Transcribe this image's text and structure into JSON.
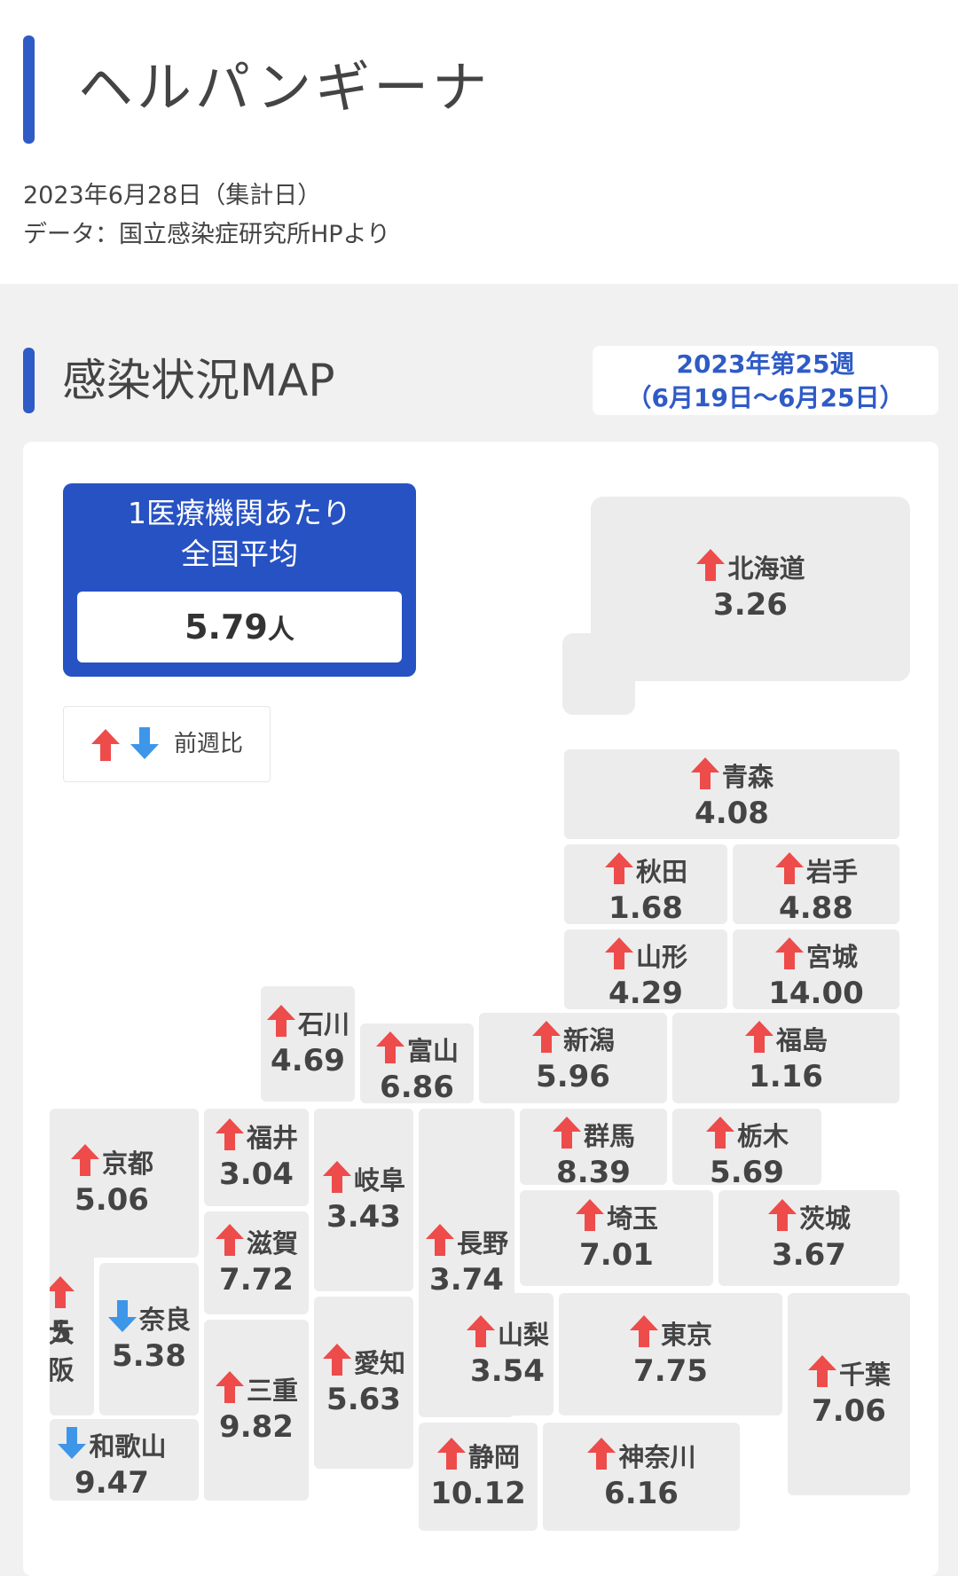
{
  "page": {
    "title": "ヘルパンギーナ",
    "date_line": "2023年6月28日（集計日）",
    "source_line": "データ：国立感染症研究所HPより"
  },
  "section": {
    "title": "感染状況MAP",
    "week_line1": "2023年第25週",
    "week_line2": "（6月19日〜6月25日）"
  },
  "average": {
    "label_line1": "1医療機関あたり",
    "label_line2": "全国平均",
    "value": "5.79",
    "unit": "人"
  },
  "legend": {
    "label": "前週比",
    "up_icon": "arrow-up-icon",
    "down_icon": "arrow-down-icon"
  },
  "colors": {
    "accent_blue": "#2f5bc6",
    "up_red": "#ee4b4b",
    "down_blue": "#3d96e8",
    "tile_gray": "#ececec"
  },
  "prefectures": [
    {
      "id": "hokkaido",
      "name": "北海道",
      "value": "3.26",
      "trend": "up"
    },
    {
      "id": "aomori",
      "name": "青森",
      "value": "4.08",
      "trend": "up"
    },
    {
      "id": "akita",
      "name": "秋田",
      "value": "1.68",
      "trend": "up"
    },
    {
      "id": "iwate",
      "name": "岩手",
      "value": "4.88",
      "trend": "up"
    },
    {
      "id": "yamagata",
      "name": "山形",
      "value": "4.29",
      "trend": "up"
    },
    {
      "id": "miyagi",
      "name": "宮城",
      "value": "14.00",
      "trend": "up"
    },
    {
      "id": "ishikawa",
      "name": "石川",
      "value": "4.69",
      "trend": "up"
    },
    {
      "id": "toyama",
      "name": "富山",
      "value": "6.86",
      "trend": "up"
    },
    {
      "id": "niigata",
      "name": "新潟",
      "value": "5.96",
      "trend": "up"
    },
    {
      "id": "fukushima",
      "name": "福島",
      "value": "1.16",
      "trend": "up"
    },
    {
      "id": "kyoto",
      "name": "京都",
      "value": "5.06",
      "trend": "up"
    },
    {
      "id": "fukui",
      "name": "福井",
      "value": "3.04",
      "trend": "up"
    },
    {
      "id": "gifu",
      "name": "岐阜",
      "value": "3.43",
      "trend": "up"
    },
    {
      "id": "nagano",
      "name": "長野",
      "value": "3.74",
      "trend": "up"
    },
    {
      "id": "gunma",
      "name": "群馬",
      "value": "8.39",
      "trend": "up"
    },
    {
      "id": "tochigi",
      "name": "栃木",
      "value": "5.69",
      "trend": "up"
    },
    {
      "id": "saitama",
      "name": "埼玉",
      "value": "7.01",
      "trend": "up"
    },
    {
      "id": "ibaraki",
      "name": "茨城",
      "value": "3.67",
      "trend": "up"
    },
    {
      "id": "shiga",
      "name": "滋賀",
      "value": "7.72",
      "trend": "up"
    },
    {
      "id": "osaka",
      "name": "大阪",
      "value": "",
      "trend": "up"
    },
    {
      "id": "nara",
      "name": "奈良",
      "value": "5.38",
      "trend": "down"
    },
    {
      "id": "yamanashi",
      "name": "山梨",
      "value": "3.54",
      "trend": "up"
    },
    {
      "id": "tokyo",
      "name": "東京",
      "value": "7.75",
      "trend": "up"
    },
    {
      "id": "chiba",
      "name": "千葉",
      "value": "7.06",
      "trend": "up"
    },
    {
      "id": "aichi",
      "name": "愛知",
      "value": "5.63",
      "trend": "up"
    },
    {
      "id": "mie",
      "name": "三重",
      "value": "9.82",
      "trend": "up"
    },
    {
      "id": "wakayama",
      "name": "和歌山",
      "value": "9.47",
      "trend": "down"
    },
    {
      "id": "shizuoka",
      "name": "静岡",
      "value": "10.12",
      "trend": "up"
    },
    {
      "id": "kanagawa",
      "name": "神奈川",
      "value": "6.16",
      "trend": "up"
    }
  ],
  "osaka_partial": {
    "name_visible": "大阪",
    "value_visible": "5"
  }
}
